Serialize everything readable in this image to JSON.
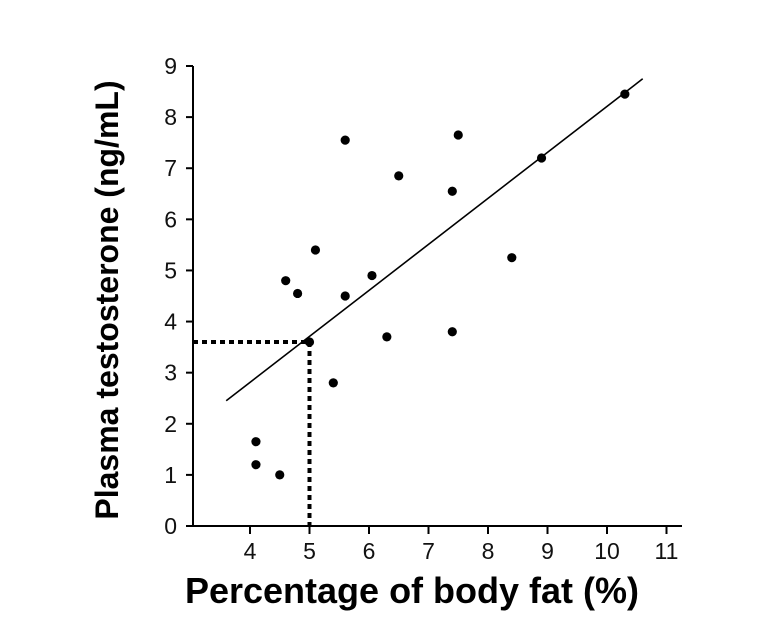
{
  "chart_data": {
    "type": "scatter",
    "title": "",
    "xlabel": "Percentage of body fat (%)",
    "ylabel": "Plasma testosterone (ng/mL)",
    "xlim": [
      3,
      11
    ],
    "ylim": [
      0,
      9
    ],
    "xticks": [
      4,
      5,
      6,
      7,
      8,
      9,
      10,
      11
    ],
    "yticks": [
      0,
      1,
      2,
      3,
      4,
      5,
      6,
      7,
      8,
      9
    ],
    "x_tick_labels": [
      "4",
      "5",
      "6",
      "7",
      "8",
      "9",
      "10",
      "11"
    ],
    "y_tick_labels": [
      "0",
      "1",
      "2",
      "3",
      "4",
      "5",
      "6",
      "7",
      "8",
      "9"
    ],
    "grid": false,
    "points": [
      {
        "x": 4.1,
        "y": 1.65
      },
      {
        "x": 4.1,
        "y": 1.2
      },
      {
        "x": 4.5,
        "y": 1.0
      },
      {
        "x": 4.6,
        "y": 4.8
      },
      {
        "x": 4.8,
        "y": 4.55
      },
      {
        "x": 5.0,
        "y": 3.6
      },
      {
        "x": 5.1,
        "y": 5.4
      },
      {
        "x": 5.4,
        "y": 2.8
      },
      {
        "x": 5.6,
        "y": 7.55
      },
      {
        "x": 5.6,
        "y": 4.5
      },
      {
        "x": 6.05,
        "y": 4.9
      },
      {
        "x": 6.3,
        "y": 3.7
      },
      {
        "x": 6.5,
        "y": 6.85
      },
      {
        "x": 7.4,
        "y": 6.55
      },
      {
        "x": 7.4,
        "y": 3.8
      },
      {
        "x": 7.5,
        "y": 7.65
      },
      {
        "x": 8.4,
        "y": 5.25
      },
      {
        "x": 8.9,
        "y": 7.2
      },
      {
        "x": 10.3,
        "y": 8.45
      }
    ],
    "trend_line": {
      "x": [
        3.6,
        10.6
      ],
      "y": [
        2.45,
        8.75
      ]
    },
    "highlight": {
      "x": 5,
      "y": 3.6
    }
  }
}
